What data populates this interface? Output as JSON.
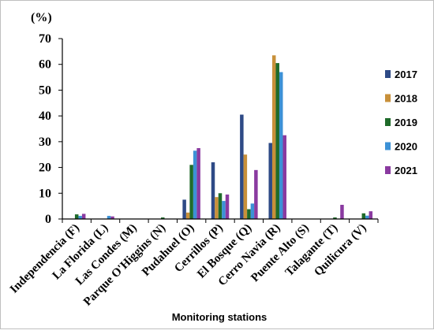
{
  "chart_data": {
    "type": "bar",
    "y_unit_label": "(%)",
    "xlabel": "Monitoring stations",
    "ylim": [
      0,
      70
    ],
    "y_ticks": [
      0,
      10,
      20,
      30,
      40,
      50,
      60,
      70
    ],
    "grid": false,
    "legend_position": "right",
    "categories": [
      "Independencia (F)",
      "La Florida (L)",
      "Las Condes (M)",
      "Parque O'Higgins (N)",
      "Pudahuel (O)",
      "Cerrillos (P)",
      "El Bosque (Q)",
      "Cerro Navia (R)",
      "Puente Alto (S)",
      "Talagante (T)",
      "Quilicura (V)"
    ],
    "series": [
      {
        "name": "2017",
        "color": "#2e4a86",
        "values": [
          0,
          0,
          0,
          0,
          7.5,
          22,
          40.5,
          29.5,
          0,
          0,
          0
        ]
      },
      {
        "name": "2018",
        "color": "#c8903a",
        "values": [
          0,
          0,
          0,
          0,
          2.5,
          8.5,
          25,
          63.5,
          0,
          0,
          0
        ]
      },
      {
        "name": "2019",
        "color": "#1f6b2a",
        "values": [
          1.8,
          0,
          0,
          0.6,
          21,
          10,
          3.8,
          60.5,
          0,
          0.6,
          2.2
        ]
      },
      {
        "name": "2020",
        "color": "#3c91d6",
        "values": [
          1.2,
          1.2,
          0,
          0,
          26.5,
          7,
          6,
          57,
          0,
          0,
          1.3
        ]
      },
      {
        "name": "2021",
        "color": "#8a3aa0",
        "values": [
          2,
          1,
          0,
          0,
          27.5,
          9.5,
          19,
          32.5,
          0,
          5.5,
          3
        ]
      }
    ]
  }
}
